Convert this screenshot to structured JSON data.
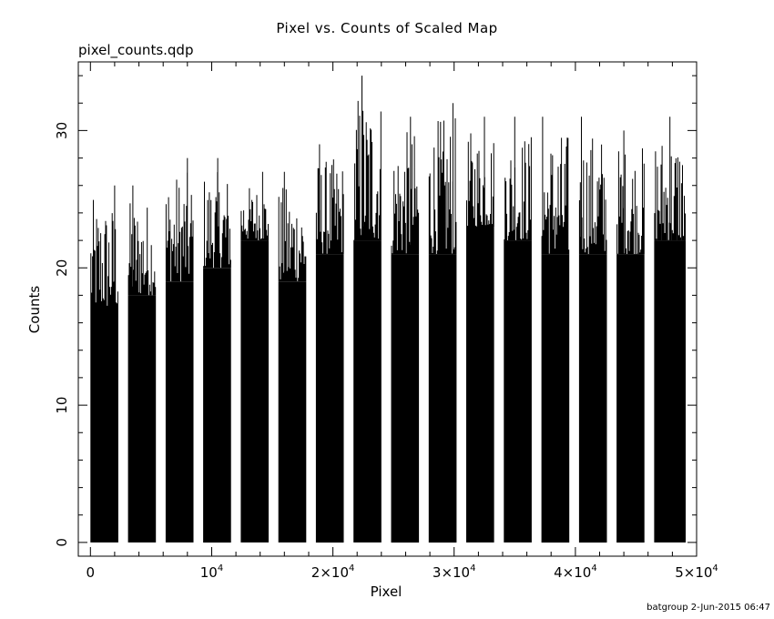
{
  "chart_data": {
    "type": "bar",
    "title": "Pixel vs. Counts of Scaled Map",
    "subtitle": "pixel_counts.qdp",
    "xlabel": "Pixel",
    "ylabel": "Counts",
    "xlim": [
      -1000,
      50000
    ],
    "ylim": [
      -1,
      35
    ],
    "x_ticks": [
      {
        "value": 0,
        "label": "0"
      },
      {
        "value": 10000,
        "base": "10",
        "exp": "4"
      },
      {
        "value": 20000,
        "base": "2×10",
        "exp": "4"
      },
      {
        "value": 30000,
        "base": "3×10",
        "exp": "4"
      },
      {
        "value": 40000,
        "base": "4×10",
        "exp": "4"
      },
      {
        "value": 50000,
        "base": "5×10",
        "exp": "4"
      }
    ],
    "y_ticks": [
      {
        "value": 0,
        "label": "0"
      },
      {
        "value": 10,
        "label": "10"
      },
      {
        "value": 20,
        "label": "20"
      },
      {
        "value": 30,
        "label": "30"
      }
    ],
    "groups": [
      {
        "x_start": 0,
        "x_end": 2300,
        "baseline": 17,
        "peak": 26,
        "max_spike_x": 2000
      },
      {
        "x_start": 3100,
        "x_end": 5400,
        "baseline": 18,
        "peak": 26,
        "max_spike_x": 3500
      },
      {
        "x_start": 6200,
        "x_end": 8500,
        "baseline": 19,
        "peak": 28,
        "max_spike_x": 8000
      },
      {
        "x_start": 9300,
        "x_end": 11600,
        "baseline": 20,
        "peak": 28,
        "max_spike_x": 10500
      },
      {
        "x_start": 12400,
        "x_end": 14700,
        "baseline": 22,
        "peak": 27,
        "max_spike_x": 14200
      },
      {
        "x_start": 15500,
        "x_end": 17800,
        "baseline": 19,
        "peak": 27,
        "max_spike_x": 16000
      },
      {
        "x_start": 18600,
        "x_end": 20900,
        "baseline": 21,
        "peak": 29,
        "max_spike_x": 18900
      },
      {
        "x_start": 21700,
        "x_end": 24000,
        "baseline": 22,
        "peak": 34,
        "max_spike_x": 22400
      },
      {
        "x_start": 24800,
        "x_end": 27100,
        "baseline": 21,
        "peak": 31,
        "max_spike_x": 26400
      },
      {
        "x_start": 27900,
        "x_end": 30200,
        "baseline": 21,
        "peak": 32,
        "max_spike_x": 29900
      },
      {
        "x_start": 31000,
        "x_end": 33300,
        "baseline": 23,
        "peak": 31,
        "max_spike_x": 32500
      },
      {
        "x_start": 34100,
        "x_end": 36400,
        "baseline": 22,
        "peak": 31,
        "max_spike_x": 35000
      },
      {
        "x_start": 37200,
        "x_end": 39500,
        "baseline": 21,
        "peak": 31,
        "max_spike_x": 37300
      },
      {
        "x_start": 40300,
        "x_end": 42600,
        "baseline": 21,
        "peak": 31,
        "max_spike_x": 40500
      },
      {
        "x_start": 43400,
        "x_end": 45700,
        "baseline": 21,
        "peak": 30,
        "max_spike_x": 44000
      },
      {
        "x_start": 46500,
        "x_end": 49100,
        "baseline": 22,
        "peak": 31,
        "max_spike_x": 47800
      }
    ]
  },
  "footer": "batgroup  2-Jun-2015 06:47"
}
